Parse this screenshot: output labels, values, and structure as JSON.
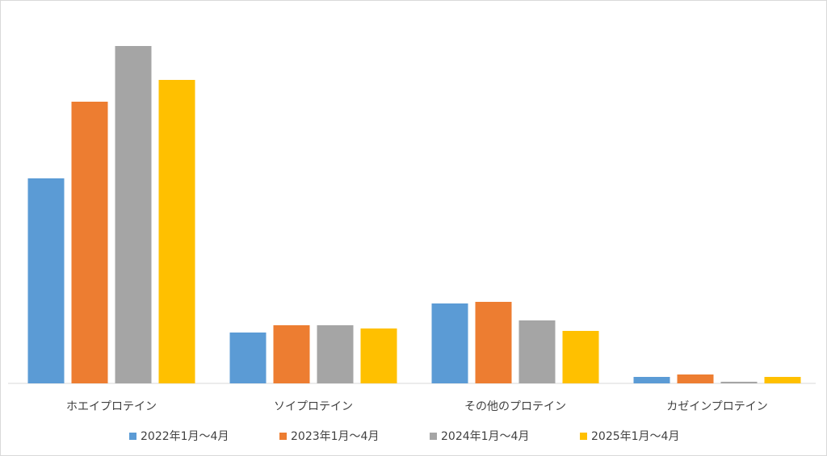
{
  "chart_data": {
    "type": "bar",
    "categories": [
      "ホエイプロテイン",
      "ソイプロテイン",
      "その他のプロテイン",
      "カゼインプロテイン"
    ],
    "series": [
      {
        "name": "2022年1月～4月",
        "color": "#5b9bd5",
        "values": [
          254,
          63,
          99,
          8
        ]
      },
      {
        "name": "2023年1月～4月",
        "color": "#ed7d31",
        "values": [
          349,
          72,
          101,
          11
        ]
      },
      {
        "name": "2024年1月～4月",
        "color": "#a5a5a5",
        "values": [
          418,
          72,
          78,
          2
        ]
      },
      {
        "name": "2025年1月～4月",
        "color": "#ffc000",
        "values": [
          376,
          68,
          65,
          8
        ]
      }
    ]
  }
}
